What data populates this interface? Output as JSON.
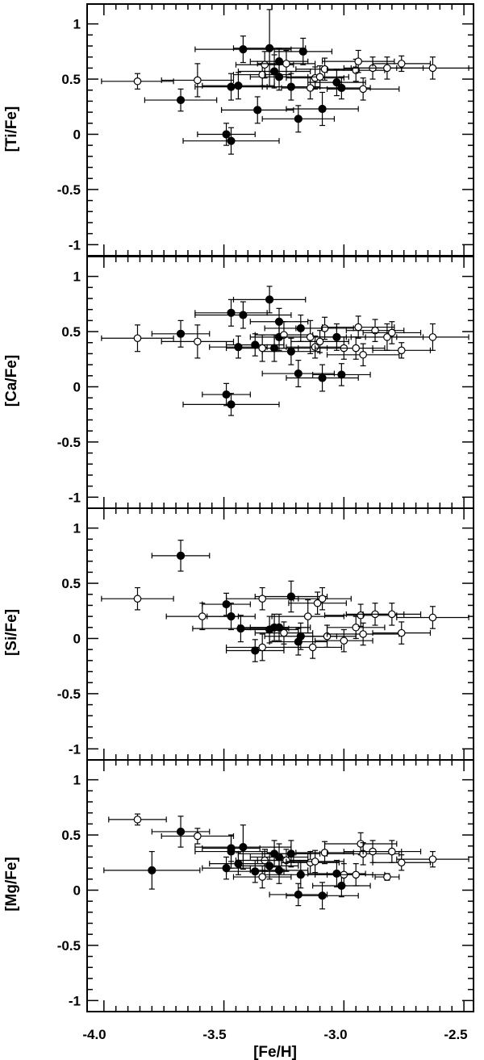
{
  "figure": {
    "xlabel": "[Fe/H]",
    "xticks": [
      "-4.0",
      "-3.5",
      "-3.0",
      "-2.5"
    ],
    "yticks": [
      "1",
      "0.5",
      "0",
      "-0.5",
      "-1"
    ]
  },
  "chart_data": [
    {
      "type": "scatter",
      "ylabel": "[Ti/Fe]",
      "xlim": [
        -4.07,
        -2.46
      ],
      "ylim": [
        -1.1,
        1.18
      ],
      "grid": false,
      "series": [
        {
          "marker": "filled-circle",
          "points": [
            {
              "x": -3.68,
              "y": 0.31,
              "xerr": 0.15,
              "yerr": 0.1
            },
            {
              "x": -3.49,
              "y": 0.0,
              "xerr": 0.12,
              "yerr": 0.1
            },
            {
              "x": -3.47,
              "y": -0.06,
              "xerr": 0.2,
              "yerr": 0.12
            },
            {
              "x": -3.47,
              "y": 0.43,
              "xerr": 0.15,
              "yerr": 0.12
            },
            {
              "x": -3.44,
              "y": 0.44,
              "xerr": 0.15,
              "yerr": 0.12
            },
            {
              "x": -3.42,
              "y": 0.77,
              "xerr": 0.2,
              "yerr": 0.12
            },
            {
              "x": -3.36,
              "y": 0.22,
              "xerr": 0.15,
              "yerr": 0.12
            },
            {
              "x": -3.31,
              "y": 0.78,
              "xerr": 0.15,
              "yerr": 0.35
            },
            {
              "x": -3.29,
              "y": 0.57,
              "xerr": 0.15,
              "yerr": 0.15
            },
            {
              "x": -3.27,
              "y": 0.66,
              "xerr": 0.12,
              "yerr": 0.12
            },
            {
              "x": -3.27,
              "y": 0.52,
              "xerr": 0.12,
              "yerr": 0.12
            },
            {
              "x": -3.22,
              "y": 0.43,
              "xerr": 0.12,
              "yerr": 0.12
            },
            {
              "x": -3.19,
              "y": 0.14,
              "xerr": 0.15,
              "yerr": 0.12
            },
            {
              "x": -3.17,
              "y": 0.75,
              "xerr": 0.12,
              "yerr": 0.12
            },
            {
              "x": -3.09,
              "y": 0.23,
              "xerr": 0.15,
              "yerr": 0.15
            },
            {
              "x": -3.03,
              "y": 0.47,
              "xerr": 0.12,
              "yerr": 0.12
            },
            {
              "x": -3.01,
              "y": 0.42,
              "xerr": 0.12,
              "yerr": 0.1
            }
          ]
        },
        {
          "marker": "open-circle",
          "points": [
            {
              "x": -3.86,
              "y": 0.48,
              "xerr": 0.15,
              "yerr": 0.07
            },
            {
              "x": -3.61,
              "y": 0.49,
              "xerr": 0.15,
              "yerr": 0.15
            },
            {
              "x": -3.34,
              "y": 0.54,
              "xerr": 0.12,
              "yerr": 0.1
            },
            {
              "x": -3.33,
              "y": 0.63,
              "xerr": 0.12,
              "yerr": 0.12
            },
            {
              "x": -3.24,
              "y": 0.64,
              "xerr": 0.12,
              "yerr": 0.12
            },
            {
              "x": -3.14,
              "y": 0.42,
              "xerr": 0.12,
              "yerr": 0.1
            },
            {
              "x": -3.12,
              "y": 0.51,
              "xerr": 0.12,
              "yerr": 0.1
            },
            {
              "x": -3.1,
              "y": 0.52,
              "xerr": 0.12,
              "yerr": 0.1
            },
            {
              "x": -3.08,
              "y": 0.59,
              "xerr": 0.12,
              "yerr": 0.1
            },
            {
              "x": -2.95,
              "y": 0.58,
              "xerr": 0.12,
              "yerr": 0.1
            },
            {
              "x": -2.94,
              "y": 0.66,
              "xerr": 0.15,
              "yerr": 0.1
            },
            {
              "x": -2.92,
              "y": 0.41,
              "xerr": 0.15,
              "yerr": 0.1
            },
            {
              "x": -2.88,
              "y": 0.6,
              "xerr": 0.12,
              "yerr": 0.1
            },
            {
              "x": -2.82,
              "y": 0.6,
              "xerr": 0.15,
              "yerr": 0.1
            },
            {
              "x": -2.76,
              "y": 0.64,
              "xerr": 0.12,
              "yerr": 0.07
            },
            {
              "x": -2.63,
              "y": 0.6,
              "xerr": 0.15,
              "yerr": 0.1
            }
          ]
        }
      ]
    },
    {
      "type": "scatter",
      "ylabel": "[Ca/Fe]",
      "xlim": [
        -4.07,
        -2.46
      ],
      "ylim": [
        -1.1,
        1.18
      ],
      "grid": false,
      "series": [
        {
          "marker": "filled-circle",
          "points": [
            {
              "x": -3.68,
              "y": 0.48,
              "xerr": 0.12,
              "yerr": 0.12
            },
            {
              "x": -3.49,
              "y": -0.07,
              "xerr": 0.1,
              "yerr": 0.1
            },
            {
              "x": -3.47,
              "y": -0.16,
              "xerr": 0.2,
              "yerr": 0.1
            },
            {
              "x": -3.47,
              "y": 0.67,
              "xerr": 0.15,
              "yerr": 0.12
            },
            {
              "x": -3.44,
              "y": 0.36,
              "xerr": 0.12,
              "yerr": 0.1
            },
            {
              "x": -3.42,
              "y": 0.65,
              "xerr": 0.2,
              "yerr": 0.12
            },
            {
              "x": -3.37,
              "y": 0.38,
              "xerr": 0.12,
              "yerr": 0.1
            },
            {
              "x": -3.31,
              "y": 0.79,
              "xerr": 0.15,
              "yerr": 0.12
            },
            {
              "x": -3.29,
              "y": 0.35,
              "xerr": 0.15,
              "yerr": 0.12
            },
            {
              "x": -3.27,
              "y": 0.45,
              "xerr": 0.12,
              "yerr": 0.12
            },
            {
              "x": -3.27,
              "y": 0.59,
              "xerr": 0.12,
              "yerr": 0.12
            },
            {
              "x": -3.22,
              "y": 0.32,
              "xerr": 0.12,
              "yerr": 0.12
            },
            {
              "x": -3.19,
              "y": 0.12,
              "xerr": 0.15,
              "yerr": 0.12
            },
            {
              "x": -3.18,
              "y": 0.53,
              "xerr": 0.15,
              "yerr": 0.12
            },
            {
              "x": -3.09,
              "y": 0.08,
              "xerr": 0.15,
              "yerr": 0.12
            },
            {
              "x": -3.03,
              "y": 0.45,
              "xerr": 0.12,
              "yerr": 0.12
            },
            {
              "x": -3.01,
              "y": 0.11,
              "xerr": 0.12,
              "yerr": 0.1
            }
          ]
        },
        {
          "marker": "open-circle",
          "points": [
            {
              "x": -3.86,
              "y": 0.44,
              "xerr": 0.15,
              "yerr": 0.12
            },
            {
              "x": -3.61,
              "y": 0.41,
              "xerr": 0.15,
              "yerr": 0.15
            },
            {
              "x": -3.34,
              "y": 0.35,
              "xerr": 0.15,
              "yerr": 0.12
            },
            {
              "x": -3.25,
              "y": 0.47,
              "xerr": 0.12,
              "yerr": 0.12
            },
            {
              "x": -3.14,
              "y": 0.45,
              "xerr": 0.15,
              "yerr": 0.15
            },
            {
              "x": -3.12,
              "y": 0.36,
              "xerr": 0.12,
              "yerr": 0.1
            },
            {
              "x": -3.1,
              "y": 0.41,
              "xerr": 0.12,
              "yerr": 0.1
            },
            {
              "x": -3.08,
              "y": 0.53,
              "xerr": 0.12,
              "yerr": 0.1
            },
            {
              "x": -3.0,
              "y": 0.35,
              "xerr": 0.12,
              "yerr": 0.1
            },
            {
              "x": -2.95,
              "y": 0.35,
              "xerr": 0.12,
              "yerr": 0.1
            },
            {
              "x": -2.94,
              "y": 0.54,
              "xerr": 0.15,
              "yerr": 0.1
            },
            {
              "x": -2.92,
              "y": 0.29,
              "xerr": 0.15,
              "yerr": 0.1
            },
            {
              "x": -2.87,
              "y": 0.51,
              "xerr": 0.12,
              "yerr": 0.1
            },
            {
              "x": -2.82,
              "y": 0.45,
              "xerr": 0.15,
              "yerr": 0.12
            },
            {
              "x": -2.8,
              "y": 0.49,
              "xerr": 0.12,
              "yerr": 0.1
            },
            {
              "x": -2.76,
              "y": 0.33,
              "xerr": 0.12,
              "yerr": 0.07
            },
            {
              "x": -2.63,
              "y": 0.45,
              "xerr": 0.15,
              "yerr": 0.12
            }
          ]
        }
      ]
    },
    {
      "type": "scatter",
      "ylabel": "[Si/Fe]",
      "xlim": [
        -4.07,
        -2.46
      ],
      "ylim": [
        -1.1,
        1.18
      ],
      "grid": false,
      "series": [
        {
          "marker": "filled-circle",
          "points": [
            {
              "x": -3.68,
              "y": 0.75,
              "xerr": 0.12,
              "yerr": 0.14
            },
            {
              "x": -3.49,
              "y": 0.31,
              "xerr": 0.1,
              "yerr": 0.1
            },
            {
              "x": -3.47,
              "y": 0.2,
              "xerr": 0.1,
              "yerr": 0.12
            },
            {
              "x": -3.43,
              "y": 0.09,
              "xerr": 0.2,
              "yerr": 0.12
            },
            {
              "x": -3.37,
              "y": -0.11,
              "xerr": 0.12,
              "yerr": 0.1
            },
            {
              "x": -3.31,
              "y": 0.08,
              "xerr": 0.12,
              "yerr": 0.12
            },
            {
              "x": -3.29,
              "y": 0.1,
              "xerr": 0.15,
              "yerr": 0.12
            },
            {
              "x": -3.27,
              "y": 0.1,
              "xerr": 0.12,
              "yerr": 0.12
            },
            {
              "x": -3.22,
              "y": 0.38,
              "xerr": 0.15,
              "yerr": 0.14
            },
            {
              "x": -3.19,
              "y": -0.03,
              "xerr": 0.12,
              "yerr": 0.12
            },
            {
              "x": -3.18,
              "y": 0.02,
              "xerr": 0.15,
              "yerr": 0.12
            }
          ]
        },
        {
          "marker": "open-circle",
          "points": [
            {
              "x": -3.86,
              "y": 0.36,
              "xerr": 0.15,
              "yerr": 0.1
            },
            {
              "x": -3.59,
              "y": 0.2,
              "xerr": 0.15,
              "yerr": 0.12
            },
            {
              "x": -3.34,
              "y": 0.36,
              "xerr": 0.15,
              "yerr": 0.1
            },
            {
              "x": -3.34,
              "y": -0.08,
              "xerr": 0.15,
              "yerr": 0.12
            },
            {
              "x": -3.25,
              "y": 0.05,
              "xerr": 0.12,
              "yerr": 0.1
            },
            {
              "x": -3.15,
              "y": 0.2,
              "xerr": 0.15,
              "yerr": 0.15
            },
            {
              "x": -3.13,
              "y": -0.08,
              "xerr": 0.12,
              "yerr": 0.1
            },
            {
              "x": -3.11,
              "y": 0.32,
              "xerr": 0.12,
              "yerr": 0.1
            },
            {
              "x": -3.09,
              "y": 0.36,
              "xerr": 0.12,
              "yerr": 0.1
            },
            {
              "x": -3.07,
              "y": 0.02,
              "xerr": 0.12,
              "yerr": 0.1
            },
            {
              "x": -3.0,
              "y": -0.02,
              "xerr": 0.12,
              "yerr": 0.1
            },
            {
              "x": -2.95,
              "y": 0.1,
              "xerr": 0.12,
              "yerr": 0.1
            },
            {
              "x": -2.93,
              "y": 0.21,
              "xerr": 0.15,
              "yerr": 0.1
            },
            {
              "x": -2.92,
              "y": 0.04,
              "xerr": 0.15,
              "yerr": 0.1
            },
            {
              "x": -2.87,
              "y": 0.22,
              "xerr": 0.12,
              "yerr": 0.1
            },
            {
              "x": -2.8,
              "y": 0.22,
              "xerr": 0.12,
              "yerr": 0.1
            },
            {
              "x": -2.76,
              "y": 0.05,
              "xerr": 0.12,
              "yerr": 0.1
            },
            {
              "x": -2.63,
              "y": 0.19,
              "xerr": 0.15,
              "yerr": 0.1
            }
          ]
        }
      ]
    },
    {
      "type": "scatter",
      "ylabel": "[Mg/Fe]",
      "xlim": [
        -4.07,
        -2.46
      ],
      "ylim": [
        -1.1,
        1.18
      ],
      "grid": false,
      "series": [
        {
          "marker": "filled-circle",
          "points": [
            {
              "x": -3.8,
              "y": 0.18,
              "xerr": 0.2,
              "yerr": 0.17
            },
            {
              "x": -3.68,
              "y": 0.53,
              "xerr": 0.12,
              "yerr": 0.14
            },
            {
              "x": -3.49,
              "y": 0.2,
              "xerr": 0.1,
              "yerr": 0.1
            },
            {
              "x": -3.47,
              "y": 0.38,
              "xerr": 0.12,
              "yerr": 0.12
            },
            {
              "x": -3.47,
              "y": 0.35,
              "xerr": 0.15,
              "yerr": 0.15
            },
            {
              "x": -3.44,
              "y": 0.24,
              "xerr": 0.12,
              "yerr": 0.1
            },
            {
              "x": -3.42,
              "y": 0.39,
              "xerr": 0.2,
              "yerr": 0.2
            },
            {
              "x": -3.37,
              "y": 0.17,
              "xerr": 0.12,
              "yerr": 0.1
            },
            {
              "x": -3.31,
              "y": 0.22,
              "xerr": 0.12,
              "yerr": 0.12
            },
            {
              "x": -3.29,
              "y": 0.33,
              "xerr": 0.15,
              "yerr": 0.12
            },
            {
              "x": -3.27,
              "y": 0.18,
              "xerr": 0.12,
              "yerr": 0.12
            },
            {
              "x": -3.27,
              "y": 0.3,
              "xerr": 0.12,
              "yerr": 0.12
            },
            {
              "x": -3.22,
              "y": 0.33,
              "xerr": 0.12,
              "yerr": 0.12
            },
            {
              "x": -3.19,
              "y": -0.04,
              "xerr": 0.12,
              "yerr": 0.1
            },
            {
              "x": -3.18,
              "y": 0.14,
              "xerr": 0.15,
              "yerr": 0.12
            },
            {
              "x": -3.09,
              "y": -0.05,
              "xerr": 0.15,
              "yerr": 0.12
            },
            {
              "x": -3.03,
              "y": 0.15,
              "xerr": 0.12,
              "yerr": 0.12
            },
            {
              "x": -3.01,
              "y": 0.04,
              "xerr": 0.12,
              "yerr": 0.1
            }
          ]
        },
        {
          "marker": "open-circle",
          "points": [
            {
              "x": -3.86,
              "y": 0.64,
              "xerr": 0.12,
              "yerr": 0.05
            },
            {
              "x": -3.61,
              "y": 0.49,
              "xerr": 0.15,
              "yerr": 0.07
            },
            {
              "x": -3.34,
              "y": 0.12,
              "xerr": 0.12,
              "yerr": 0.1
            },
            {
              "x": -3.33,
              "y": 0.27,
              "xerr": 0.12,
              "yerr": 0.1
            },
            {
              "x": -3.24,
              "y": 0.27,
              "xerr": 0.12,
              "yerr": 0.1
            },
            {
              "x": -3.14,
              "y": 0.25,
              "xerr": 0.12,
              "yerr": 0.1
            },
            {
              "x": -3.12,
              "y": 0.26,
              "xerr": 0.12,
              "yerr": 0.1
            },
            {
              "x": -3.08,
              "y": 0.34,
              "xerr": 0.12,
              "yerr": 0.1
            },
            {
              "x": -3.0,
              "y": 0.14,
              "xerr": 0.12,
              "yerr": 0.1
            },
            {
              "x": -2.95,
              "y": 0.14,
              "xerr": 0.12,
              "yerr": 0.1
            },
            {
              "x": -2.93,
              "y": 0.42,
              "xerr": 0.15,
              "yerr": 0.1
            },
            {
              "x": -2.92,
              "y": 0.33,
              "xerr": 0.15,
              "yerr": 0.1
            },
            {
              "x": -2.88,
              "y": 0.35,
              "xerr": 0.12,
              "yerr": 0.1
            },
            {
              "x": -2.8,
              "y": 0.35,
              "xerr": 0.12,
              "yerr": 0.1
            },
            {
              "x": -2.82,
              "y": 0.12,
              "xerr": 0.05,
              "yerr": 0.03
            },
            {
              "x": -2.76,
              "y": 0.25,
              "xerr": 0.12,
              "yerr": 0.07
            },
            {
              "x": -2.63,
              "y": 0.28,
              "xerr": 0.15,
              "yerr": 0.07
            }
          ]
        }
      ]
    }
  ]
}
